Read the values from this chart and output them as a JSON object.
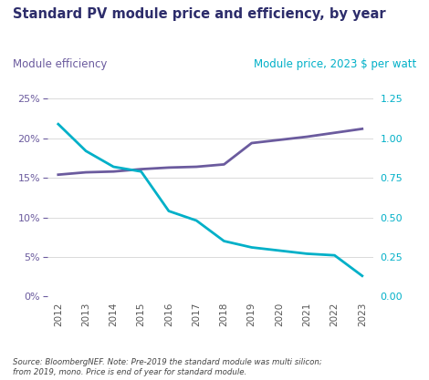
{
  "title": "Standard PV module price and efficiency, by year",
  "title_color": "#2d2d6b",
  "left_axis_label": "Module efficiency",
  "right_axis_label": "Module price, 2023 $ per watt",
  "left_axis_color": "#6b5b9e",
  "right_axis_color": "#00b0c8",
  "source_text": "Source: BloombergNEF. Note: Pre-2019 the standard module was multi silicon;\nfrom 2019, mono. Price is end of year for standard module.",
  "years": [
    2012,
    2013,
    2014,
    2015,
    2016,
    2017,
    2018,
    2019,
    2020,
    2021,
    2022,
    2023
  ],
  "efficiency": [
    0.154,
    0.157,
    0.158,
    0.161,
    0.163,
    0.164,
    0.167,
    0.194,
    0.198,
    0.202,
    0.207,
    0.212
  ],
  "price": [
    1.09,
    0.92,
    0.82,
    0.79,
    0.54,
    0.48,
    0.35,
    0.31,
    0.29,
    0.27,
    0.26,
    0.13
  ],
  "efficiency_color": "#6b5b9e",
  "price_color": "#00b0c8",
  "left_ylim": [
    0,
    0.25
  ],
  "right_ylim": [
    0,
    1.25
  ],
  "left_yticks": [
    0,
    0.05,
    0.1,
    0.15,
    0.2,
    0.25
  ],
  "right_yticks": [
    0.0,
    0.25,
    0.5,
    0.75,
    1.0,
    1.25
  ],
  "background_color": "#ffffff",
  "grid_color": "#d4d4d4",
  "line_width": 2.0
}
